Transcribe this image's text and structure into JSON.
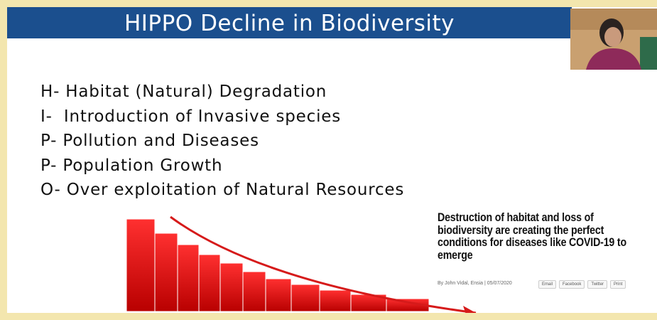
{
  "slide": {
    "title": "HIPPO Decline in Biodiversity",
    "items": [
      "H- Habitat (Natural) Degradation",
      "I-  Introduction of Invasive species",
      "P- Pollution and Diseases",
      "P- Population Growth",
      "O- Over exploitation of Natural Resources"
    ],
    "article": {
      "headline": "Destruction of habitat and loss of biodiversity are creating the perfect conditions for diseases like COVID-19 to emerge",
      "byline": "By John Vidal, Ensia | 05/07/2020",
      "buttons": [
        "Email",
        "Facebook",
        "Twitter",
        "Print"
      ]
    }
  }
}
